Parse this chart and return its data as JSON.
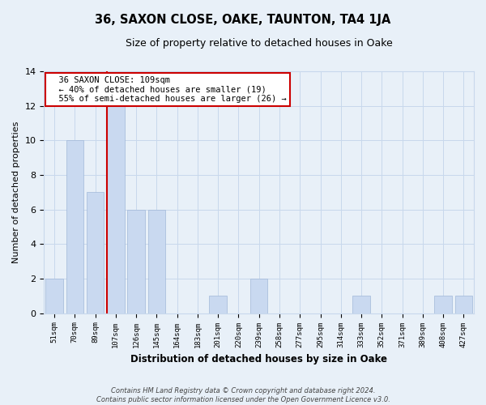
{
  "title": "36, SAXON CLOSE, OAKE, TAUNTON, TA4 1JA",
  "subtitle": "Size of property relative to detached houses in Oake",
  "xlabel": "Distribution of detached houses by size in Oake",
  "ylabel": "Number of detached properties",
  "bin_labels": [
    "51sqm",
    "70sqm",
    "89sqm",
    "107sqm",
    "126sqm",
    "145sqm",
    "164sqm",
    "183sqm",
    "201sqm",
    "220sqm",
    "239sqm",
    "258sqm",
    "277sqm",
    "295sqm",
    "314sqm",
    "333sqm",
    "352sqm",
    "371sqm",
    "389sqm",
    "408sqm",
    "427sqm"
  ],
  "bar_heights": [
    2,
    10,
    7,
    12,
    6,
    6,
    0,
    0,
    1,
    0,
    2,
    0,
    0,
    0,
    0,
    1,
    0,
    0,
    0,
    1,
    1
  ],
  "bar_color": "#c9d9f0",
  "bar_edge_color": "#a0b8d8",
  "highlight_bar_index": 3,
  "highlight_line_color": "#cc0000",
  "ylim": [
    0,
    14
  ],
  "yticks": [
    0,
    2,
    4,
    6,
    8,
    10,
    12,
    14
  ],
  "annotation_title": "36 SAXON CLOSE: 109sqm",
  "annotation_line1": "← 40% of detached houses are smaller (19)",
  "annotation_line2": "55% of semi-detached houses are larger (26) →",
  "annotation_box_color": "#ffffff",
  "annotation_border_color": "#cc0000",
  "grid_color": "#c8d8ec",
  "background_color": "#e8f0f8",
  "footer_line1": "Contains HM Land Registry data © Crown copyright and database right 2024.",
  "footer_line2": "Contains public sector information licensed under the Open Government Licence v3.0."
}
